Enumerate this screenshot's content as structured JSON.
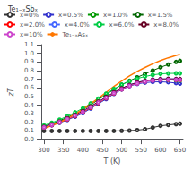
{
  "chart_data": {
    "type": "line",
    "legend_title": "Te₁₋ₓSbₓ",
    "xlabel": "T (K)",
    "ylabel": "zT",
    "xlim": [
      293,
      658
    ],
    "ylim": [
      0.0,
      1.1
    ],
    "xticks": [
      300,
      350,
      400,
      450,
      500,
      550,
      600,
      650
    ],
    "yticks": [
      {
        "value": 0,
        "label": "0.0"
      },
      0.1,
      0.2,
      0.3,
      0.4,
      0.5,
      0.6,
      0.7,
      0.8,
      0.9,
      {
        "value": 1,
        "label": "1.0"
      },
      1.1
    ],
    "grid": false,
    "legend": "upper left",
    "x": [
      300,
      320,
      340,
      360,
      380,
      400,
      420,
      440,
      460,
      480,
      500,
      520,
      540,
      560,
      580,
      600,
      620,
      640,
      650
    ],
    "series": [
      {
        "name": "x=0%",
        "color": "#333333",
        "marker": "circle",
        "values": [
          0.1,
          0.1,
          0.1,
          0.1,
          0.1,
          0.1,
          0.1,
          0.1,
          0.1,
          0.1,
          0.102,
          0.105,
          0.11,
          0.12,
          0.14,
          0.16,
          0.17,
          0.18,
          0.185
        ]
      },
      {
        "name": "x=0.5%",
        "color": "#3333cc",
        "marker": "circle",
        "values": [
          0.14,
          0.165,
          0.195,
          0.228,
          0.265,
          0.305,
          0.36,
          0.415,
          0.47,
          0.53,
          0.58,
          0.62,
          0.645,
          0.66,
          0.668,
          0.67,
          0.665,
          0.655,
          0.648
        ]
      },
      {
        "name": "x=1.0%",
        "color": "#009900",
        "marker": "circle",
        "values": [
          0.145,
          0.172,
          0.203,
          0.238,
          0.276,
          0.318,
          0.373,
          0.428,
          0.483,
          0.54,
          0.592,
          0.632,
          0.66,
          0.678,
          0.69,
          0.695,
          0.692,
          0.688,
          0.685
        ]
      },
      {
        "name": "x=1.5%",
        "color": "#006600",
        "marker": "circle",
        "values": [
          0.155,
          0.185,
          0.22,
          0.258,
          0.3,
          0.345,
          0.403,
          0.462,
          0.522,
          0.582,
          0.636,
          0.682,
          0.722,
          0.762,
          0.8,
          0.838,
          0.87,
          0.9,
          0.912
        ]
      },
      {
        "name": "x=2.0%",
        "color": "#ff0000",
        "marker": "circle",
        "values": [
          0.14,
          0.168,
          0.2,
          0.235,
          0.274,
          0.316,
          0.37,
          0.425,
          0.48,
          0.536,
          0.584,
          0.624,
          0.654,
          0.675,
          0.688,
          0.695,
          0.695,
          0.693,
          0.69
        ]
      },
      {
        "name": "x=4.0%",
        "color": "#4466ff",
        "marker": "circle",
        "values": [
          0.145,
          0.174,
          0.207,
          0.244,
          0.284,
          0.328,
          0.383,
          0.438,
          0.493,
          0.548,
          0.596,
          0.634,
          0.663,
          0.683,
          0.696,
          0.703,
          0.705,
          0.703,
          0.7
        ]
      },
      {
        "name": "x=6.0%",
        "color": "#00cc44",
        "marker": "circle",
        "values": [
          0.165,
          0.196,
          0.232,
          0.272,
          0.316,
          0.363,
          0.42,
          0.476,
          0.533,
          0.588,
          0.636,
          0.676,
          0.708,
          0.732,
          0.75,
          0.762,
          0.767,
          0.768,
          0.768
        ]
      },
      {
        "name": "x=8.0%",
        "color": "#660022",
        "marker": "circle",
        "values": [
          0.148,
          0.177,
          0.21,
          0.247,
          0.287,
          0.331,
          0.385,
          0.439,
          0.494,
          0.548,
          0.595,
          0.633,
          0.662,
          0.682,
          0.695,
          0.702,
          0.704,
          0.703,
          0.702
        ]
      },
      {
        "name": "x=10%",
        "color": "#cc44cc",
        "marker": "circle",
        "values": [
          0.143,
          0.171,
          0.203,
          0.239,
          0.279,
          0.322,
          0.376,
          0.43,
          0.484,
          0.538,
          0.585,
          0.623,
          0.652,
          0.672,
          0.685,
          0.692,
          0.694,
          0.693,
          0.692
        ]
      },
      {
        "name": "Te₁₋ₓAsₓ",
        "color": "#ff7700",
        "marker": "none",
        "values": [
          0.13,
          0.162,
          0.2,
          0.245,
          0.296,
          0.352,
          0.415,
          0.48,
          0.548,
          0.616,
          0.68,
          0.738,
          0.79,
          0.836,
          0.878,
          0.916,
          0.948,
          0.975,
          0.988
        ]
      }
    ]
  }
}
